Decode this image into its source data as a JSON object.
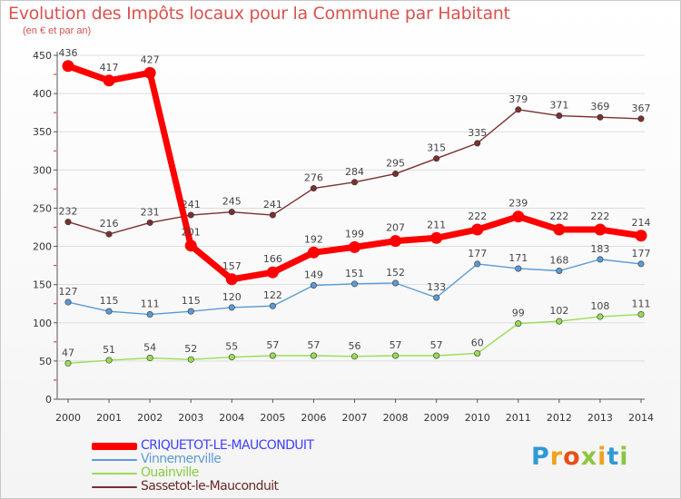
{
  "header": {
    "title": "Evolution des Impôts locaux pour la Commune par Habitant",
    "subtitle": "(en € et par an)"
  },
  "colors": {
    "title": "#d9534f",
    "axis": "#555555",
    "grid": "#dddddd",
    "tick_mark": "#e02020"
  },
  "logo": {
    "text": "Proxiti",
    "letters": [
      {
        "ch": "P",
        "color": "#2d9ad6"
      },
      {
        "ch": "r",
        "color": "#f0a21c"
      },
      {
        "ch": "o",
        "color": "#e8501b"
      },
      {
        "ch": "x",
        "color": "#8cc63f"
      },
      {
        "ch": "i",
        "color": "#f0a21c"
      },
      {
        "ch": "t",
        "color": "#2d9ad6"
      },
      {
        "ch": "i",
        "color": "#8cc63f"
      }
    ]
  },
  "chart_data": {
    "type": "line",
    "title": "Evolution des Impôts locaux pour la Commune par Habitant",
    "subtitle": "(en € et par an)",
    "xlabel": "",
    "ylabel": "",
    "ylim": [
      0,
      450
    ],
    "yticks": [
      0,
      50,
      100,
      150,
      200,
      250,
      300,
      350,
      400,
      450
    ],
    "x": [
      "2000",
      "2001",
      "2002",
      "2003",
      "2004",
      "2005",
      "2006",
      "2007",
      "2008",
      "2009",
      "2010",
      "2011",
      "2012",
      "2013",
      "2014"
    ],
    "grid": "horizontal",
    "legend_position": "bottom-left",
    "series": [
      {
        "name": "CRIQUETOT-LE-MAUCONDUIT",
        "color": "#ff0000",
        "label_color": "#4040ff",
        "emphasis": "thick",
        "values": [
          436,
          417,
          427,
          201,
          157,
          166,
          192,
          199,
          207,
          211,
          222,
          239,
          222,
          222,
          214
        ]
      },
      {
        "name": "Vinnemerville",
        "color": "#5b9bd5",
        "label_color": "#5b9bd5",
        "emphasis": "thin",
        "values": [
          127,
          115,
          111,
          115,
          120,
          122,
          149,
          151,
          152,
          133,
          177,
          171,
          168,
          183,
          177
        ]
      },
      {
        "name": "Ouainville",
        "color": "#99dd55",
        "label_color": "#88cc44",
        "emphasis": "thin",
        "values": [
          47,
          51,
          54,
          52,
          55,
          57,
          57,
          56,
          57,
          57,
          60,
          99,
          102,
          108,
          111
        ]
      },
      {
        "name": "Sassetot-le-Mauconduit",
        "color": "#7a3030",
        "label_color": "#6a2a2a",
        "emphasis": "thin",
        "values": [
          232,
          216,
          231,
          241,
          245,
          241,
          276,
          284,
          295,
          315,
          335,
          379,
          371,
          369,
          367
        ]
      }
    ]
  }
}
